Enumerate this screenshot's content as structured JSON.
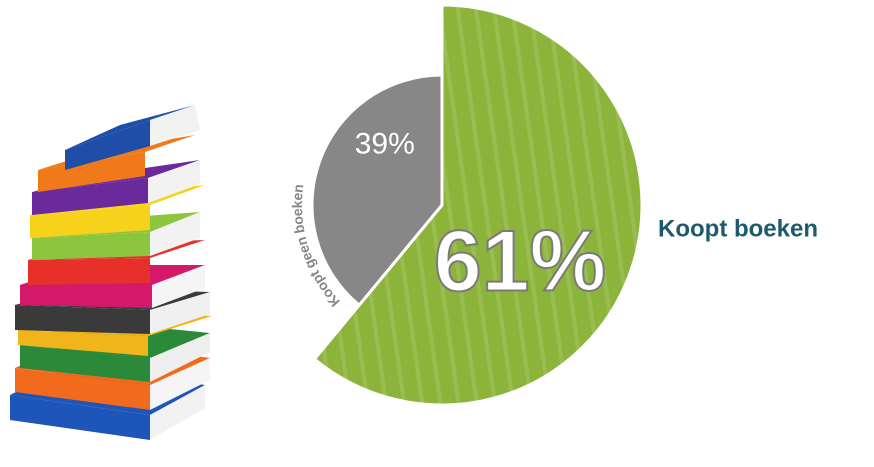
{
  "chart_data": {
    "type": "pie",
    "categories": [
      "Koopt boeken",
      "Koopt geen boeken"
    ],
    "values": [
      61,
      39
    ],
    "value_labels": [
      "61%",
      "39%"
    ],
    "colors": [
      "#8cb43a",
      "#878787"
    ],
    "label_color": "#1d5a6e"
  }
}
